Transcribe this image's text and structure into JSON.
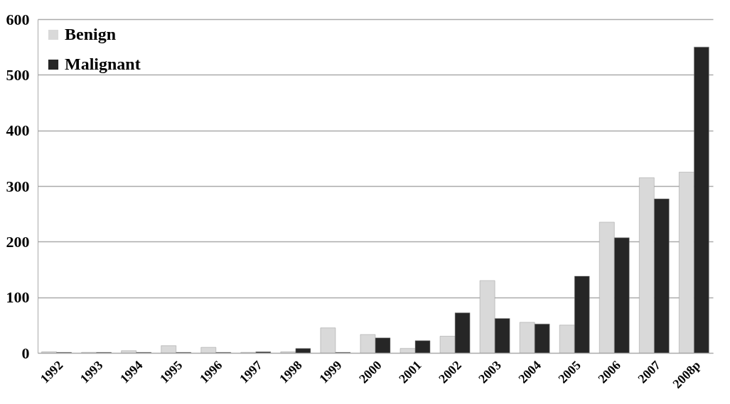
{
  "chart_data": {
    "type": "bar",
    "categories": [
      "1992",
      "1993",
      "1994",
      "1995",
      "1996",
      "1997",
      "1998",
      "1999",
      "2000",
      "2001",
      "2002",
      "2003",
      "2004",
      "2005",
      "2006",
      "2007",
      "2008p"
    ],
    "series": [
      {
        "name": "Benign",
        "color": "#d9d9d9",
        "values": [
          2,
          1,
          4,
          13,
          10,
          1,
          2,
          45,
          33,
          8,
          30,
          130,
          55,
          50,
          235,
          315,
          325
        ]
      },
      {
        "name": "Malignant",
        "color": "#262626",
        "values": [
          1,
          1,
          1,
          1,
          1,
          2,
          8,
          1,
          27,
          22,
          72,
          62,
          52,
          138,
          207,
          277,
          550
        ]
      }
    ],
    "ylim": [
      0,
      600
    ],
    "yticks": [
      0,
      100,
      200,
      300,
      400,
      500,
      600
    ],
    "grid": "y",
    "legend": "top left"
  }
}
